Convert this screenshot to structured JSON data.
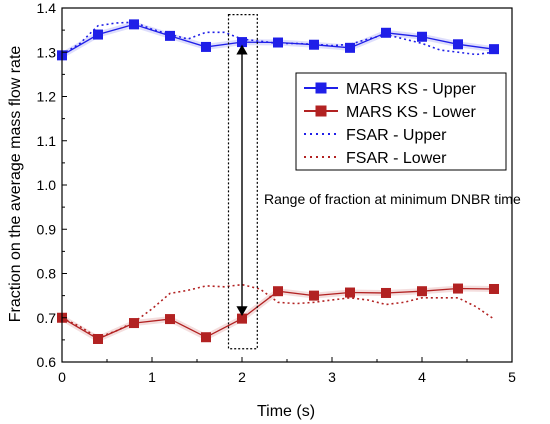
{
  "chart_data": {
    "type": "line",
    "xlabel": "Time (s)",
    "ylabel": "Fraction on the average mass flow rate",
    "xlim": [
      0,
      5
    ],
    "ylim": [
      0.6,
      1.4
    ],
    "x_ticks": [
      "0",
      "1",
      "2",
      "3",
      "4",
      "5"
    ],
    "y_ticks": [
      "0.6",
      "0.7",
      "0.8",
      "0.9",
      "1.0",
      "1.1",
      "1.2",
      "1.3",
      "1.4"
    ],
    "grid": false,
    "legend_position": "right",
    "series": [
      {
        "name": "MARS KS - Upper",
        "color": "#1f1fe8",
        "style": "solid-square",
        "x": [
          0,
          0.4,
          0.8,
          1.2,
          1.6,
          2.0,
          2.4,
          2.8,
          3.2,
          3.6,
          4.0,
          4.4,
          4.8
        ],
        "y": [
          1.293,
          1.34,
          1.363,
          1.337,
          1.312,
          1.323,
          1.322,
          1.317,
          1.31,
          1.344,
          1.335,
          1.318,
          1.307
        ]
      },
      {
        "name": "MARS KS - Lower",
        "color": "#b22222",
        "style": "solid-square",
        "x": [
          0,
          0.4,
          0.8,
          1.2,
          1.6,
          2.0,
          2.4,
          2.8,
          3.2,
          3.6,
          4.0,
          4.4,
          4.8
        ],
        "y": [
          0.7,
          0.652,
          0.688,
          0.697,
          0.656,
          0.698,
          0.76,
          0.75,
          0.757,
          0.756,
          0.76,
          0.766,
          0.765
        ]
      },
      {
        "name": "FSAR - Upper",
        "color": "#1f1fe8",
        "style": "dotted",
        "x": [
          0,
          0.2,
          0.4,
          0.6,
          0.8,
          1.0,
          1.2,
          1.4,
          1.6,
          1.8,
          2.0,
          2.2,
          2.4,
          2.6,
          2.8,
          3.0,
          3.2,
          3.4,
          3.6,
          3.8,
          4.0,
          4.2,
          4.4,
          4.6,
          4.8
        ],
        "y": [
          1.295,
          1.32,
          1.36,
          1.366,
          1.368,
          1.352,
          1.34,
          1.33,
          1.345,
          1.345,
          1.33,
          1.325,
          1.32,
          1.32,
          1.318,
          1.315,
          1.318,
          1.33,
          1.34,
          1.33,
          1.32,
          1.305,
          1.3,
          1.295,
          1.3
        ]
      },
      {
        "name": "FSAR - Lower",
        "color": "#b22222",
        "style": "dotted",
        "x": [
          0,
          0.2,
          0.4,
          0.6,
          0.8,
          1.0,
          1.2,
          1.4,
          1.6,
          1.8,
          2.0,
          2.2,
          2.4,
          2.6,
          2.8,
          3.0,
          3.2,
          3.4,
          3.6,
          3.8,
          4.0,
          4.2,
          4.4,
          4.6,
          4.8
        ],
        "y": [
          0.7,
          0.68,
          0.655,
          0.67,
          0.69,
          0.72,
          0.755,
          0.762,
          0.772,
          0.77,
          0.775,
          0.765,
          0.735,
          0.732,
          0.735,
          0.74,
          0.745,
          0.74,
          0.73,
          0.735,
          0.745,
          0.745,
          0.745,
          0.725,
          0.697
        ]
      }
    ],
    "annotation": {
      "text": "Range of fraction at minimum DNBR time",
      "x": 2.0,
      "y_range": [
        0.698,
        1.323
      ],
      "box_x": [
        1.85,
        2.17
      ],
      "box_y": [
        0.63,
        1.385
      ]
    }
  }
}
